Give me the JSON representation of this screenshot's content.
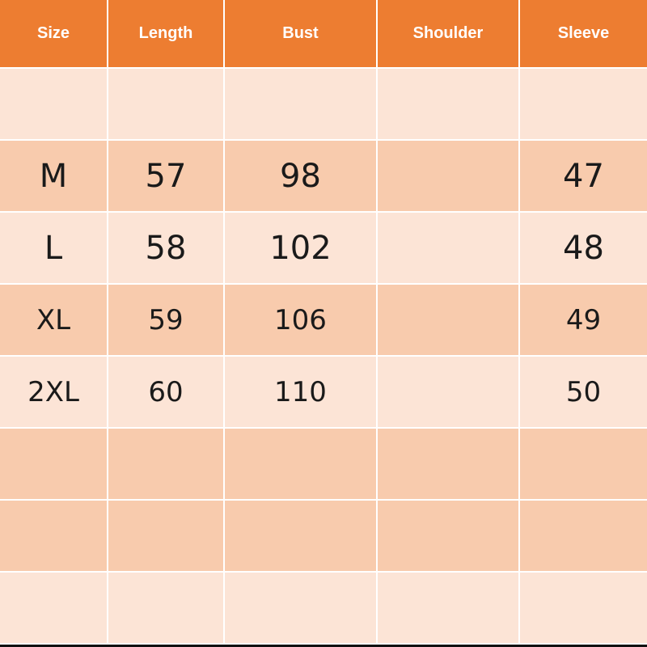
{
  "colors": {
    "header": "#ED7D31",
    "row_light": "#FCE4D6",
    "row_dark": "#F8CBAD"
  },
  "headers": [
    "Size",
    "Length",
    "Bust",
    "Shoulder",
    "Sleeve"
  ],
  "rows": [
    [
      "",
      "",
      "",
      "",
      ""
    ],
    [
      "M",
      "57",
      "98",
      "",
      "47"
    ],
    [
      "L",
      "58",
      "102",
      "",
      "48"
    ],
    [
      "XL",
      "59",
      "106",
      "",
      "49"
    ],
    [
      "2XL",
      "60",
      "110",
      "",
      "50"
    ],
    [
      "",
      "",
      "",
      "",
      ""
    ],
    [
      "",
      "",
      "",
      "",
      ""
    ],
    [
      "",
      "",
      "",
      "",
      ""
    ]
  ]
}
